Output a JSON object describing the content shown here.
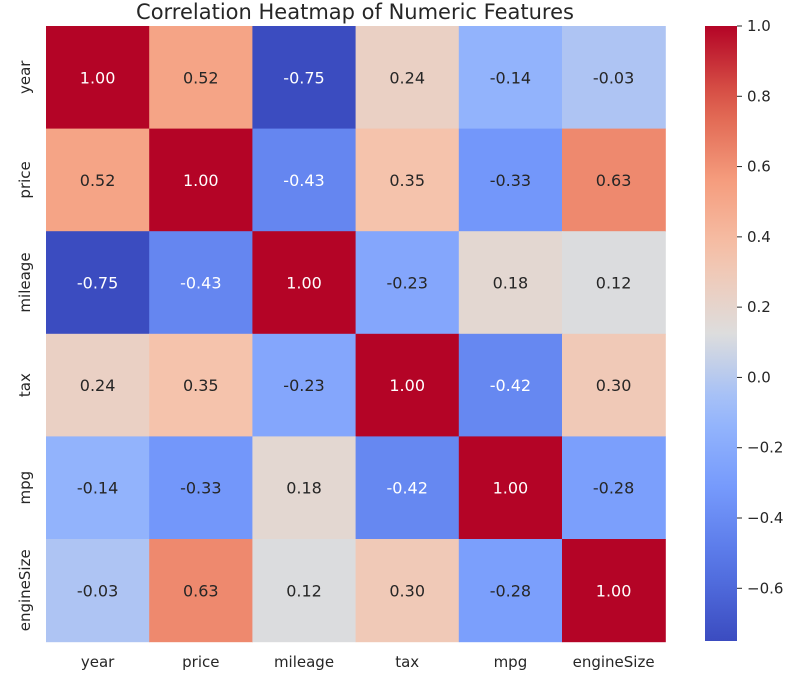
{
  "chart_data": {
    "type": "heatmap",
    "title": "Correlation Heatmap of Numeric Features",
    "x_labels": [
      "year",
      "price",
      "mileage",
      "tax",
      "mpg",
      "engineSize"
    ],
    "y_labels": [
      "year",
      "price",
      "mileage",
      "tax",
      "mpg",
      "engineSize"
    ],
    "values": [
      [
        1.0,
        0.52,
        -0.75,
        0.24,
        -0.14,
        -0.03
      ],
      [
        0.52,
        1.0,
        -0.43,
        0.35,
        -0.33,
        0.63
      ],
      [
        -0.75,
        -0.43,
        1.0,
        -0.23,
        0.18,
        0.12
      ],
      [
        0.24,
        0.35,
        -0.23,
        1.0,
        -0.42,
        0.3
      ],
      [
        -0.14,
        -0.33,
        0.18,
        -0.42,
        1.0,
        -0.28
      ],
      [
        -0.03,
        0.63,
        0.12,
        0.3,
        -0.28,
        1.0
      ]
    ],
    "annotation_format": "0.00",
    "colormap": "coolwarm",
    "vmin": -0.75,
    "vmax": 1.0,
    "colorbar": {
      "ticks": [
        1.0,
        0.8,
        0.6,
        0.4,
        0.2,
        0.0,
        -0.2,
        -0.4,
        -0.6
      ],
      "tick_labels": [
        "1.0",
        "0.8",
        "0.6",
        "0.4",
        "0.2",
        "0.0",
        "−0.2",
        "−0.4",
        "−0.6"
      ],
      "placement": "right"
    },
    "grid": false
  }
}
